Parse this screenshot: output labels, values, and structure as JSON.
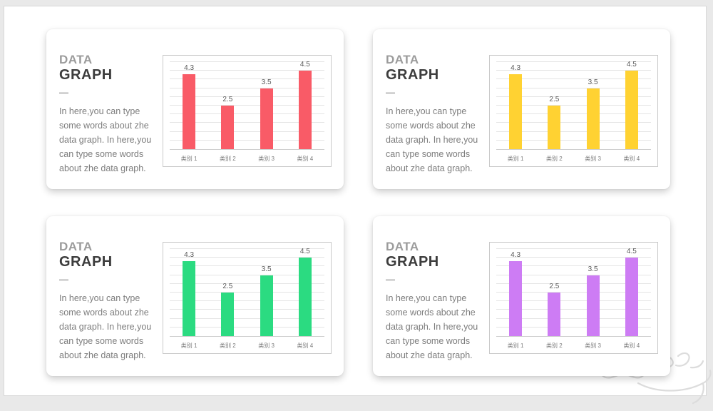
{
  "canvas": {
    "background_color": "#e9e9e9",
    "slide_background_color": "#ffffff",
    "slide_border_color": "#d8d8d8"
  },
  "cards": [
    {
      "title_line1": "DATA",
      "title_line2": "GRAPH",
      "divider": "—",
      "body": "In here,you can type some words about zhe data graph. In here,you can type some words about zhe data graph.",
      "chart_index": 0
    },
    {
      "title_line1": "DATA",
      "title_line2": "GRAPH",
      "divider": "—",
      "body": "In here,you can type some words about zhe data graph. In here,you can type some words about zhe data graph.",
      "chart_index": 1
    },
    {
      "title_line1": "DATA",
      "title_line2": "GRAPH",
      "divider": "—",
      "body": "In here,you can type some words about zhe data graph. In here,you can type some words about zhe data graph.",
      "chart_index": 2
    },
    {
      "title_line1": "DATA",
      "title_line2": "GRAPH",
      "divider": "—",
      "body": "In here,you can type some words about zhe data graph. In here,you can type some words about zhe data graph.",
      "chart_index": 3
    }
  ],
  "chart_data": [
    {
      "type": "bar",
      "categories": [
        "类别 1",
        "类别 2",
        "类别 3",
        "类别 4"
      ],
      "values": [
        4.3,
        2.5,
        3.5,
        4.5
      ],
      "value_labels": [
        "4.3",
        "2.5",
        "3.5",
        "4.5"
      ],
      "bar_color": "#F95B67",
      "ylim": [
        0,
        5
      ],
      "grid_step": 0.5,
      "grid": "horizontal",
      "legend": false,
      "title": "",
      "xlabel": "",
      "ylabel": ""
    },
    {
      "type": "bar",
      "categories": [
        "类别 1",
        "类别 2",
        "类别 3",
        "类别 4"
      ],
      "values": [
        4.3,
        2.5,
        3.5,
        4.5
      ],
      "value_labels": [
        "4.3",
        "2.5",
        "3.5",
        "4.5"
      ],
      "bar_color": "#FFD232",
      "ylim": [
        0,
        5
      ],
      "grid_step": 0.5,
      "grid": "horizontal",
      "legend": false,
      "title": "",
      "xlabel": "",
      "ylabel": ""
    },
    {
      "type": "bar",
      "categories": [
        "类别 1",
        "类别 2",
        "类别 3",
        "类别 4"
      ],
      "values": [
        4.3,
        2.5,
        3.5,
        4.5
      ],
      "value_labels": [
        "4.3",
        "2.5",
        "3.5",
        "4.5"
      ],
      "bar_color": "#2BDB81",
      "ylim": [
        0,
        5
      ],
      "grid_step": 0.5,
      "grid": "horizontal",
      "legend": false,
      "title": "",
      "xlabel": "",
      "ylabel": ""
    },
    {
      "type": "bar",
      "categories": [
        "类别 1",
        "类别 2",
        "类别 3",
        "类别 4"
      ],
      "values": [
        4.3,
        2.5,
        3.5,
        4.5
      ],
      "value_labels": [
        "4.3",
        "2.5",
        "3.5",
        "4.5"
      ],
      "bar_color": "#CD7CF4",
      "ylim": [
        0,
        5
      ],
      "grid_step": 0.5,
      "grid": "horizontal",
      "legend": false,
      "title": "",
      "xlabel": "",
      "ylabel": ""
    }
  ],
  "watermark": {
    "icon": "paw-print-watermark",
    "color": "#dcdcdc"
  }
}
